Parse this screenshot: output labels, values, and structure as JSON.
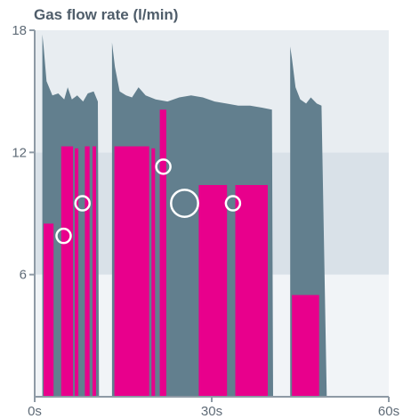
{
  "chart_data": {
    "type": "area",
    "title": "Gas flow rate (l/min)",
    "xlabel": "",
    "ylabel": "",
    "xlim": [
      0,
      60
    ],
    "ylim": [
      0,
      18
    ],
    "x_ticks": [
      {
        "value": 0,
        "label": "0s"
      },
      {
        "value": 30,
        "label": "30s"
      },
      {
        "value": 60,
        "label": "60s"
      }
    ],
    "y_ticks": [
      {
        "value": 6,
        "label": "6"
      },
      {
        "value": 12,
        "label": "12"
      },
      {
        "value": 18,
        "label": "18"
      }
    ],
    "y_bands": [
      {
        "from": 0,
        "to": 6,
        "color": "#f1f4f7"
      },
      {
        "from": 6,
        "to": 12,
        "color": "#d9e1e8"
      },
      {
        "from": 12,
        "to": 18,
        "color": "#e8edf1"
      }
    ],
    "colors": {
      "supply": "#627f8e",
      "consumption": "#e8008c",
      "axis": "#8e9aa5",
      "marker": "#ffffff"
    },
    "series": [
      {
        "kind": "supply",
        "points": [
          [
            1.3,
            0
          ],
          [
            1.3,
            17.8
          ],
          [
            1.5,
            17.2
          ],
          [
            2,
            15.5
          ],
          [
            3,
            14.8
          ],
          [
            4,
            14.9
          ],
          [
            5,
            14.6
          ],
          [
            5.6,
            15.2
          ],
          [
            6.3,
            14.6
          ],
          [
            7.2,
            14.8
          ],
          [
            8.2,
            14.5
          ],
          [
            9,
            14.9
          ],
          [
            10,
            15
          ],
          [
            10.7,
            14.5
          ],
          [
            10.9,
            0
          ]
        ]
      },
      {
        "kind": "supply",
        "points": [
          [
            13.1,
            0
          ],
          [
            13.1,
            17.4
          ],
          [
            13.6,
            16.2
          ],
          [
            14.4,
            15
          ],
          [
            15.5,
            14.8
          ],
          [
            16.5,
            14.7
          ],
          [
            17.6,
            15.2
          ],
          [
            18.8,
            14.8
          ],
          [
            20.5,
            14.6
          ],
          [
            22.5,
            14.5
          ],
          [
            24.5,
            14.7
          ],
          [
            26.5,
            14.8
          ],
          [
            28.5,
            14.7
          ],
          [
            30.5,
            14.5
          ],
          [
            32.5,
            14.4
          ],
          [
            34.5,
            14.3
          ],
          [
            36.5,
            14.3
          ],
          [
            38.5,
            14.2
          ],
          [
            40.2,
            14.1
          ],
          [
            40.4,
            0
          ]
        ]
      },
      {
        "kind": "supply",
        "points": [
          [
            43.3,
            0
          ],
          [
            43.3,
            17.2
          ],
          [
            43.6,
            16.6
          ],
          [
            44.2,
            15.2
          ],
          [
            45,
            14.6
          ],
          [
            46,
            14.4
          ],
          [
            46.8,
            14.7
          ],
          [
            47.8,
            14.4
          ],
          [
            48.6,
            14.3
          ],
          [
            49.5,
            0
          ]
        ]
      },
      {
        "kind": "consumption",
        "points": [
          [
            1.5,
            0
          ],
          [
            1.5,
            8.5
          ],
          [
            3.2,
            8.5
          ],
          [
            3.2,
            0
          ],
          [
            4.5,
            0
          ],
          [
            4.5,
            12.3
          ],
          [
            6.5,
            12.3
          ],
          [
            6.5,
            0
          ],
          [
            6.8,
            0
          ],
          [
            6.8,
            12.2
          ],
          [
            7.4,
            12.2
          ],
          [
            7.4,
            0
          ],
          [
            8.5,
            0
          ],
          [
            8.5,
            12.3
          ],
          [
            9.3,
            12.3
          ],
          [
            9.3,
            0
          ],
          [
            9.8,
            0
          ],
          [
            9.8,
            12.3
          ],
          [
            10.4,
            12.3
          ],
          [
            10.4,
            0
          ]
        ]
      },
      {
        "kind": "consumption",
        "points": [
          [
            13.5,
            0
          ],
          [
            13.5,
            12.3
          ],
          [
            19.4,
            12.3
          ],
          [
            19.4,
            0
          ],
          [
            19.8,
            0
          ],
          [
            19.8,
            12.2
          ],
          [
            20.4,
            12.2
          ],
          [
            20.4,
            0
          ],
          [
            21.2,
            0
          ],
          [
            21.2,
            14.1
          ],
          [
            22.3,
            14.1
          ],
          [
            22.3,
            0
          ],
          [
            27.8,
            0
          ],
          [
            27.8,
            10.4
          ],
          [
            32.6,
            10.4
          ],
          [
            32.6,
            0
          ],
          [
            34,
            0
          ],
          [
            34,
            10.4
          ],
          [
            39.5,
            10.4
          ],
          [
            39.5,
            0
          ]
        ]
      },
      {
        "kind": "consumption",
        "points": [
          [
            43.6,
            0
          ],
          [
            43.6,
            5
          ],
          [
            48.2,
            5
          ],
          [
            48.2,
            0
          ]
        ]
      }
    ],
    "markers": [
      {
        "x": 4.9,
        "y": 7.9,
        "r": 1
      },
      {
        "x": 8.1,
        "y": 9.5,
        "r": 1
      },
      {
        "x": 21.8,
        "y": 11.3,
        "r": 1
      },
      {
        "x": 25.4,
        "y": 9.5,
        "r": 1.9
      },
      {
        "x": 33.6,
        "y": 9.5,
        "r": 1
      }
    ]
  }
}
